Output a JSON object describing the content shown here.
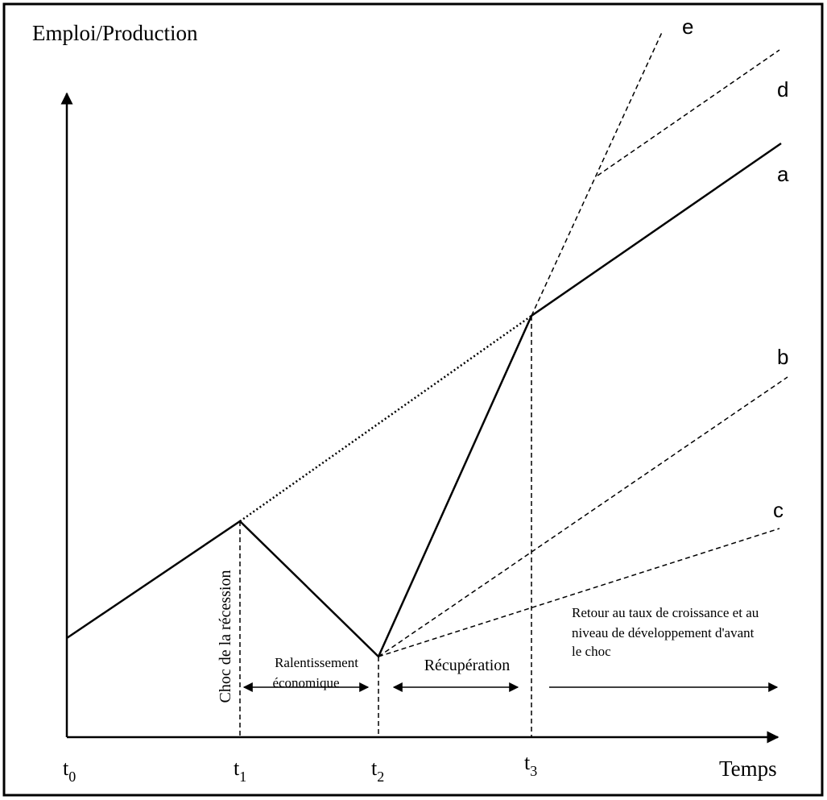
{
  "axes": {
    "y_label": "Emploi/Production",
    "x_label": "Temps"
  },
  "time_marks": [
    {
      "base": "t",
      "sub": "0"
    },
    {
      "base": "t",
      "sub": "1"
    },
    {
      "base": "t",
      "sub": "2"
    },
    {
      "base": "t",
      "sub": "3"
    }
  ],
  "curves": {
    "e": "e",
    "d": "d",
    "a": "a",
    "b": "b",
    "c": "c"
  },
  "annotations": {
    "shock": "Choc de la récession",
    "slowdown": [
      "Ralentissement",
      "économique"
    ],
    "recovery": "Récupération",
    "return": [
      "Retour au taux de croissance et au",
      "niveau de développement d'avant",
      "le choc"
    ]
  }
}
